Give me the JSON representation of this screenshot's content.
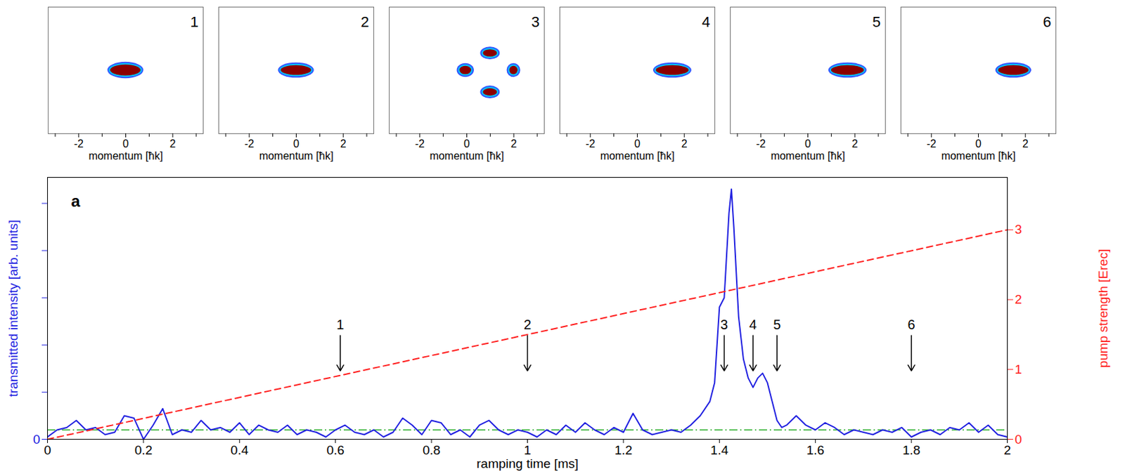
{
  "chart_data": [
    {
      "type": "momentum_image",
      "label": "1",
      "xlabel": "momentum [ħk]",
      "xlim": [
        -3.3,
        3.3
      ],
      "xticks": [
        -2,
        0,
        2
      ],
      "xticks_unlabeled": [
        -3,
        -1,
        1,
        3
      ],
      "ylim": [
        -2.6,
        2.6
      ],
      "color": "#8b0000",
      "peaks": [
        {
          "x": 0.0,
          "y": 0.0,
          "width": 1.3,
          "height": 0.45
        }
      ]
    },
    {
      "type": "momentum_image",
      "label": "2",
      "xlabel": "momentum [ħk]",
      "xlim": [
        -3.3,
        3.3
      ],
      "xticks": [
        -2,
        0,
        2
      ],
      "xticks_unlabeled": [
        -3,
        -1,
        1,
        3
      ],
      "ylim": [
        -2.6,
        2.6
      ],
      "color": "#8b0000",
      "peaks": [
        {
          "x": 0.0,
          "y": 0.0,
          "width": 1.3,
          "height": 0.4
        }
      ]
    },
    {
      "type": "momentum_image",
      "label": "3",
      "xlabel": "momentum [ħk]",
      "xlim": [
        -3.3,
        3.3
      ],
      "xticks": [
        -2,
        0,
        2
      ],
      "xticks_unlabeled": [
        -3,
        -1,
        1,
        3
      ],
      "ylim": [
        -2.6,
        2.6
      ],
      "color": "#8b0000",
      "peaks": [
        {
          "x": -0.05,
          "y": 0.0,
          "width": 0.5,
          "height": 0.35
        },
        {
          "x": 2.0,
          "y": 0.0,
          "width": 0.35,
          "height": 0.35
        },
        {
          "x": 1.0,
          "y": 0.7,
          "width": 0.6,
          "height": 0.3
        },
        {
          "x": 1.0,
          "y": -0.9,
          "width": 0.6,
          "height": 0.3
        }
      ]
    },
    {
      "type": "momentum_image",
      "label": "4",
      "xlabel": "momentum [ħk]",
      "xlim": [
        -3.3,
        3.3
      ],
      "xticks": [
        -2,
        0,
        2
      ],
      "xticks_unlabeled": [
        -3,
        -1,
        1,
        3
      ],
      "ylim": [
        -2.6,
        2.6
      ],
      "color": "#8b0000",
      "peaks": [
        {
          "x": 1.5,
          "y": 0.0,
          "width": 1.4,
          "height": 0.4
        }
      ]
    },
    {
      "type": "momentum_image",
      "label": "5",
      "xlabel": "momentum [ħk]",
      "xlim": [
        -3.3,
        3.3
      ],
      "xticks": [
        -2,
        0,
        2
      ],
      "xticks_unlabeled": [
        -3,
        -1,
        1,
        3
      ],
      "ylim": [
        -2.6,
        2.6
      ],
      "color": "#8b0000",
      "peaks": [
        {
          "x": 1.7,
          "y": 0.0,
          "width": 1.4,
          "height": 0.4
        }
      ]
    },
    {
      "type": "momentum_image",
      "label": "6",
      "xlabel": "momentum [ħk]",
      "xlim": [
        -3.3,
        3.3
      ],
      "xticks": [
        -2,
        0,
        2
      ],
      "xticks_unlabeled": [
        -3,
        -1,
        1,
        3
      ],
      "ylim": [
        -2.6,
        2.6
      ],
      "color": "#8b0000",
      "peaks": [
        {
          "x": 1.5,
          "y": 0.0,
          "width": 1.3,
          "height": 0.4
        }
      ]
    },
    {
      "type": "line",
      "panel_label": "a",
      "xlabel": "ramping time [ms]",
      "ylabel": "transmitted intensity [arb. units]",
      "y2label": "pump strength [Erec]",
      "xlim": [
        0,
        2
      ],
      "xticks": [
        0,
        0.2,
        0.4,
        0.6,
        0.8,
        1,
        1.2,
        1.4,
        1.6,
        1.8,
        2
      ],
      "ylim": [
        0,
        5.55
      ],
      "yticks": [
        0
      ],
      "yticks_unlabeled": [
        1,
        2,
        3,
        4,
        5
      ],
      "y2lim": [
        0,
        3.75
      ],
      "y2ticks": [
        0,
        1,
        2,
        3
      ],
      "series": [
        {
          "color": "#2020e0",
          "line_style": "solid",
          "x": [
            0,
            0.02,
            0.04,
            0.06,
            0.08,
            0.1,
            0.12,
            0.14,
            0.16,
            0.18,
            0.2,
            0.22,
            0.24,
            0.26,
            0.28,
            0.3,
            0.32,
            0.34,
            0.36,
            0.38,
            0.4,
            0.42,
            0.44,
            0.46,
            0.48,
            0.5,
            0.52,
            0.54,
            0.56,
            0.58,
            0.6,
            0.62,
            0.64,
            0.66,
            0.68,
            0.7,
            0.72,
            0.74,
            0.76,
            0.78,
            0.8,
            0.82,
            0.84,
            0.86,
            0.88,
            0.9,
            0.92,
            0.94,
            0.96,
            0.98,
            1,
            1.02,
            1.04,
            1.06,
            1.08,
            1.1,
            1.12,
            1.14,
            1.16,
            1.18,
            1.2,
            1.22,
            1.24,
            1.26,
            1.28,
            1.3,
            1.32,
            1.34,
            1.36,
            1.38,
            1.39,
            1.4,
            1.41,
            1.42,
            1.425,
            1.43,
            1.44,
            1.45,
            1.46,
            1.47,
            1.48,
            1.49,
            1.5,
            1.51,
            1.52,
            1.53,
            1.54,
            1.56,
            1.58,
            1.6,
            1.62,
            1.64,
            1.66,
            1.68,
            1.7,
            1.72,
            1.74,
            1.76,
            1.78,
            1.8,
            1.82,
            1.84,
            1.86,
            1.88,
            1.9,
            1.92,
            1.94,
            1.96,
            1.98,
            2
          ],
          "values": [
            0.05,
            0.2,
            0.25,
            0.4,
            0.2,
            0.25,
            0.1,
            0.15,
            0.5,
            0.45,
            0.0,
            0.3,
            0.65,
            0.1,
            0.2,
            0.15,
            0.4,
            0.2,
            0.25,
            0.15,
            0.35,
            0.1,
            0.3,
            0.2,
            0.15,
            0.3,
            0.1,
            0.2,
            0.15,
            0.05,
            0.2,
            0.3,
            0.15,
            0.1,
            0.2,
            0.05,
            0.15,
            0.45,
            0.3,
            0.1,
            0.4,
            0.35,
            0.1,
            0.2,
            0.05,
            0.3,
            0.4,
            0.2,
            0.1,
            0.2,
            0.15,
            0.05,
            0.2,
            0.1,
            0.3,
            0.15,
            0.35,
            0.2,
            0.1,
            0.25,
            0.15,
            0.55,
            0.2,
            0.1,
            0.15,
            0.2,
            0.15,
            0.3,
            0.5,
            0.8,
            1.2,
            2.8,
            3.0,
            4.8,
            5.3,
            4.5,
            2.6,
            1.7,
            1.3,
            1.1,
            1.3,
            1.4,
            1.2,
            0.8,
            0.4,
            0.25,
            0.3,
            0.5,
            0.3,
            0.2,
            0.35,
            0.25,
            0.1,
            0.2,
            0.15,
            0.1,
            0.2,
            0.15,
            0.25,
            0.05,
            0.15,
            0.2,
            0.1,
            0.25,
            0.2,
            0.35,
            0.15,
            0.3,
            0.1,
            0.05
          ]
        },
        {
          "axis": "y2",
          "color": "#ff2020",
          "line_style": "dashed",
          "x": [
            0,
            2
          ],
          "values": [
            0,
            3
          ]
        }
      ],
      "hline": {
        "value": 0.2,
        "color": "#22aa22",
        "line_style": "dashdot"
      },
      "annotations": [
        {
          "text": "1",
          "x": 0.61,
          "y_from": 2.2,
          "y_to": 1.45
        },
        {
          "text": "2",
          "x": 1.0,
          "y_from": 2.2,
          "y_to": 1.45
        },
        {
          "text": "3",
          "x": 1.41,
          "y_from": 2.2,
          "y_to": 1.45
        },
        {
          "text": "4",
          "x": 1.47,
          "y_from": 2.2,
          "y_to": 1.45
        },
        {
          "text": "5",
          "x": 1.52,
          "y_from": 2.2,
          "y_to": 1.45
        },
        {
          "text": "6",
          "x": 1.8,
          "y_from": 2.2,
          "y_to": 1.45
        }
      ]
    }
  ]
}
